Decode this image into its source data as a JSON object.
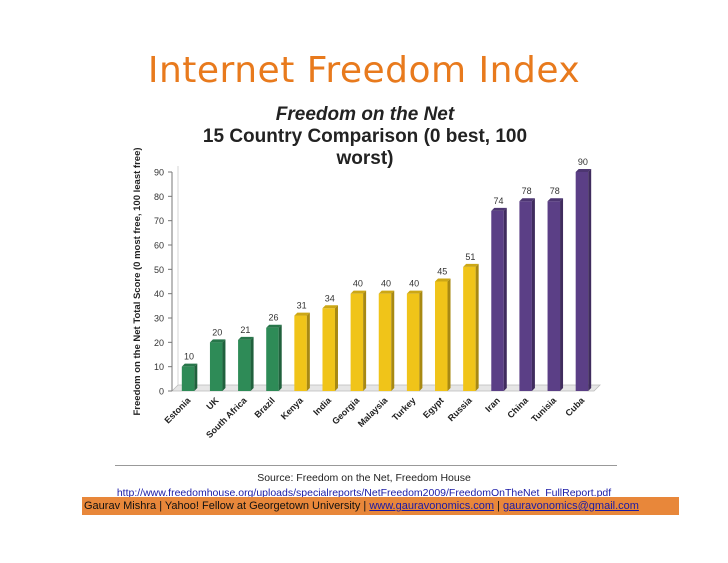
{
  "slide": {
    "title": "Internet Freedom Index",
    "source": "Source: Freedom on the Net, Freedom House",
    "url": "http://www.freedomhouse.org/uploads/specialreports/NetFreedom2009/FreedomOnTheNet_FullReport.pdf",
    "footer": {
      "author": "Gaurav Mishra | Yahoo! Fellow at Georgetown University | ",
      "site": "www.gauravonomics.com",
      "sep": " | ",
      "email": "gauravonomics@gmail.com"
    }
  },
  "chart_data": {
    "type": "bar",
    "title": "Freedom on the Net",
    "subtitle": "15 Country Comparison (0 best, 100 worst)",
    "ylabel": "Freedom on the Net Total Score (0 most free, 100 least free)",
    "xlabel": "",
    "ylim": [
      0,
      90
    ],
    "yticks": [
      0,
      10,
      20,
      30,
      40,
      50,
      60,
      70,
      80,
      90
    ],
    "grid": false,
    "categories": [
      "Estonia",
      "UK",
      "South Africa",
      "Brazil",
      "Kenya",
      "India",
      "Georgia",
      "Malaysia",
      "Turkey",
      "Egypt",
      "Russia",
      "Iran",
      "China",
      "Tunisia",
      "Cuba"
    ],
    "values": [
      10,
      20,
      21,
      26,
      31,
      34,
      40,
      40,
      40,
      45,
      51,
      74,
      78,
      78,
      90
    ],
    "colors": [
      "#2e8b57",
      "#2e8b57",
      "#2e8b57",
      "#2e8b57",
      "#f0c419",
      "#f0c419",
      "#f0c419",
      "#f0c419",
      "#f0c419",
      "#f0c419",
      "#f0c419",
      "#5b3f86",
      "#5b3f86",
      "#5b3f86",
      "#5b3f86"
    ]
  }
}
